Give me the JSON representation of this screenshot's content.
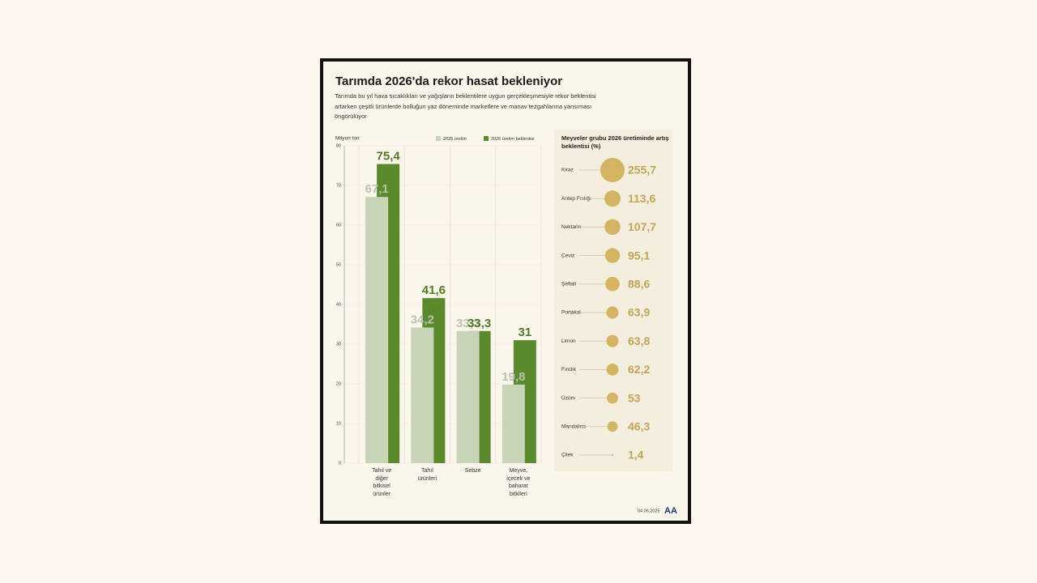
{
  "title": "Tarımda 2026'da rekor hasat bekleniyor",
  "subtitle": "Tarımda bu yıl hava sıcaklıkları ve yağışların beklentilere uygun gerçekleşmesiyle rekor beklentisi artarken çeşitli ürünlerde bolluğun yaz döneminde marketlere ve manav tezgahlarına yansıması öngörülüyor",
  "date": "04.06.2025",
  "logo": "AA",
  "chart_data": [
    {
      "type": "bar",
      "y_label": "Milyon ton",
      "categories": [
        "Tahıl ve diğer bitkisel ürünler",
        "Tahıl ürünleri",
        "Sebze",
        "Meyve, içecek ve baharat bitkileri"
      ],
      "series": [
        {
          "name": "2025 üretim",
          "color": "#c8d4b6",
          "label_color": "#b9c2ad",
          "values": [
            67.1,
            34.2,
            33.3,
            19.8
          ],
          "value_labels": [
            "67,1",
            "34,2",
            "33,3",
            "19,8"
          ]
        },
        {
          "name": "2026 üretim beklentisi",
          "color": "#5a8a2b",
          "label_color": "#4f7b25",
          "values": [
            75.4,
            41.6,
            33.3,
            31
          ],
          "value_labels": [
            "75,4",
            "41,6",
            "33,3",
            "31"
          ]
        }
      ],
      "ylim": [
        0,
        80
      ],
      "yticks": [
        0,
        10,
        20,
        30,
        40,
        50,
        60,
        70,
        80
      ],
      "grid": true
    },
    {
      "type": "bubble",
      "title": "Meyveler grubu 2026 üretiminde artış beklentisi (%)",
      "categories": [
        "Kiraz",
        "Antep Fıstığı",
        "Nektarin",
        "Ceviz",
        "Şeftali",
        "Portakal",
        "Limon",
        "Fındık",
        "Üzüm",
        "Mandalina",
        "Çilek"
      ],
      "values": [
        255.7,
        113.6,
        107.7,
        95.1,
        88.6,
        63.9,
        63.8,
        62.2,
        53,
        46.3,
        1.4
      ],
      "value_labels": [
        "255,7",
        "113,6",
        "107,7",
        "95,1",
        "88,6",
        "63,9",
        "63,8",
        "62,2",
        "53",
        "46,3",
        "1,4"
      ],
      "color": "#d3b462",
      "label_color": "#c2a455"
    }
  ]
}
